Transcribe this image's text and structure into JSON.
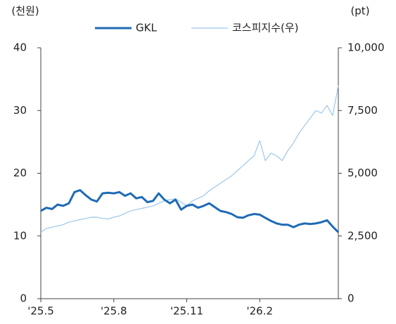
{
  "chart_data": {
    "type": "line",
    "y_label": "(천원)",
    "y2_label": "(pt)",
    "categories": [
      "'25.5",
      null,
      null,
      null,
      null,
      null,
      null,
      null,
      null,
      null,
      null,
      null,
      null,
      "'25.8",
      null,
      null,
      null,
      null,
      null,
      null,
      null,
      null,
      null,
      null,
      null,
      null,
      "'25.11",
      null,
      null,
      null,
      null,
      null,
      null,
      null,
      null,
      null,
      null,
      null,
      null,
      "'26.2",
      null,
      null,
      null,
      null,
      null,
      null,
      null,
      null,
      null,
      null,
      null,
      null,
      null,
      null
    ],
    "series": [
      {
        "name": "GKL",
        "color": "#1f6bb5",
        "axis": "y",
        "values": [
          14.0,
          14.5,
          14.3,
          15.0,
          14.8,
          15.2,
          17.0,
          17.3,
          16.5,
          15.8,
          15.5,
          16.8,
          16.9,
          16.8,
          17.0,
          16.4,
          16.8,
          16.0,
          16.2,
          15.4,
          15.6,
          16.8,
          15.8,
          15.2,
          15.8,
          14.2,
          14.8,
          15.0,
          14.5,
          14.8,
          15.2,
          14.6,
          14.0,
          13.8,
          13.5,
          13.0,
          12.9,
          13.3,
          13.5,
          13.4,
          12.9,
          12.4,
          12.0,
          11.8,
          11.8,
          11.4,
          11.8,
          12.0,
          11.9,
          12.0,
          12.2,
          12.5,
          11.5,
          10.6
        ]
      },
      {
        "name": "코스피지수(우)",
        "color": "#9cc8ec",
        "axis": "y2",
        "values": [
          2650,
          2800,
          2850,
          2900,
          2950,
          3050,
          3100,
          3150,
          3200,
          3250,
          3250,
          3200,
          3180,
          3250,
          3300,
          3400,
          3500,
          3550,
          3600,
          3650,
          3700,
          3800,
          3900,
          3950,
          3980,
          3850,
          3700,
          3900,
          4000,
          4100,
          4300,
          4450,
          4600,
          4750,
          4900,
          5100,
          5300,
          5500,
          5700,
          6300,
          5500,
          5800,
          5700,
          5500,
          5900,
          6200,
          6600,
          6900,
          7200,
          7500,
          7400,
          7700,
          7300,
          8500
        ]
      }
    ],
    "ylim": [
      0,
      40
    ],
    "yticks": [
      0,
      10,
      20,
      30,
      40
    ],
    "y2lim": [
      0,
      10000
    ],
    "y2ticks": [
      0,
      {
        "value": 2500,
        "label": "2,500"
      },
      {
        "value": 5000,
        "label": "5,000"
      },
      {
        "value": 7500,
        "label": "7,500"
      },
      {
        "value": 10000,
        "label": "10,000"
      }
    ],
    "legend": "top"
  }
}
